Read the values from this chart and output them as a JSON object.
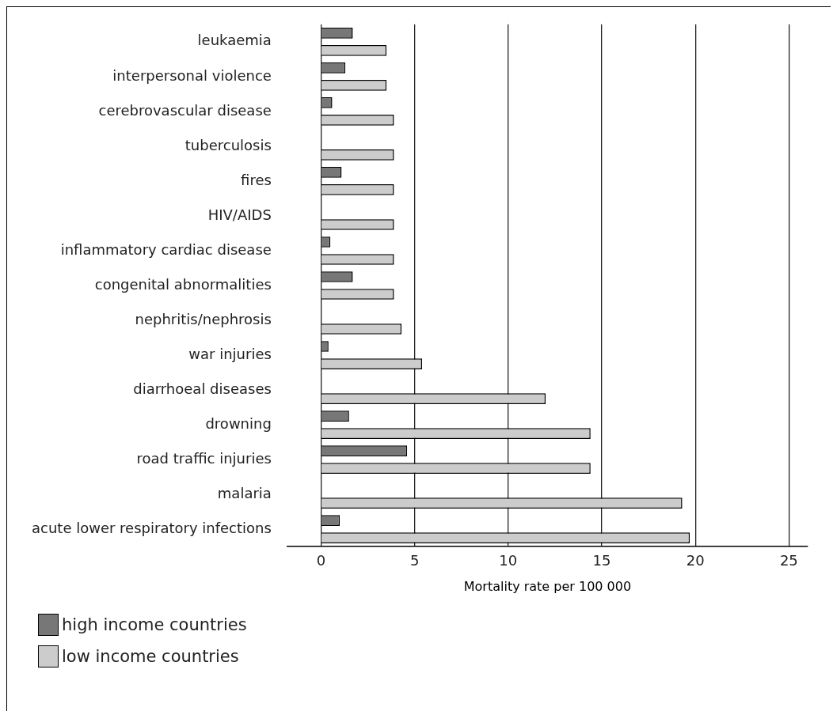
{
  "chart_data": {
    "type": "bar",
    "orientation": "horizontal",
    "xlabel": "Mortality rate per 100 000",
    "categories": [
      "leukaemia",
      "interpersonal violence",
      "cerebrovascular disease",
      "tuberculosis",
      "fires",
      "HIV/AIDS",
      "inflammatory cardiac disease",
      "congenital abnormalities",
      "nephritis/nephrosis",
      "war injuries",
      "diarrhoeal diseases",
      "drowning",
      "road traffic injuries",
      "malaria",
      "acute lower respiratory infections"
    ],
    "series": [
      {
        "name": "high income countries",
        "color": "#777777",
        "values": [
          1.7,
          1.3,
          0.6,
          null,
          1.1,
          null,
          0.5,
          1.7,
          null,
          0.4,
          null,
          1.5,
          4.6,
          null,
          1.0
        ]
      },
      {
        "name": "low income countries",
        "color": "#cccccc",
        "values": [
          3.5,
          3.5,
          3.9,
          3.9,
          3.9,
          3.9,
          3.9,
          3.9,
          4.3,
          5.4,
          12.0,
          14.4,
          14.4,
          19.3,
          19.7
        ]
      }
    ],
    "xlim": [
      -1.8,
      26
    ],
    "xticks": [
      0,
      5,
      10,
      15,
      20,
      25
    ],
    "grid": "x",
    "legend": "bottom left"
  }
}
